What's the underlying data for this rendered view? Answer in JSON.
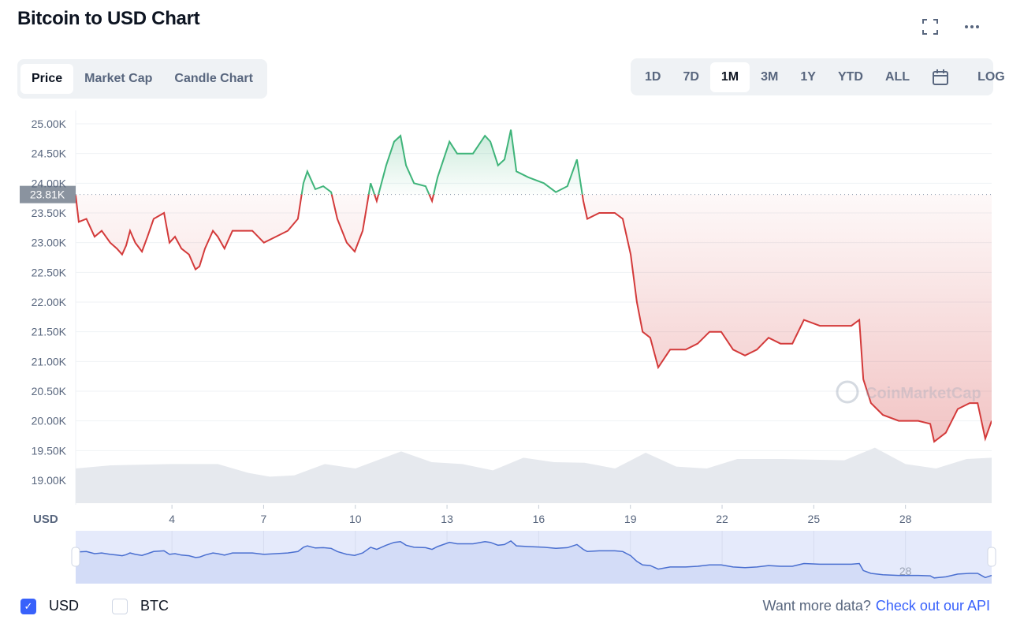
{
  "header": {
    "title": "Bitcoin to USD Chart"
  },
  "tabs": [
    {
      "label": "Price",
      "active": true
    },
    {
      "label": "Market Cap",
      "active": false
    },
    {
      "label": "Candle Chart",
      "active": false
    }
  ],
  "ranges": [
    {
      "label": "1D"
    },
    {
      "label": "7D"
    },
    {
      "label": "1M",
      "active": true
    },
    {
      "label": "3M"
    },
    {
      "label": "1Y"
    },
    {
      "label": "YTD"
    },
    {
      "label": "ALL"
    }
  ],
  "log_label": "LOG",
  "currency_label": "USD",
  "currencies": [
    {
      "label": "USD",
      "checked": true
    },
    {
      "label": "BTC",
      "checked": false
    }
  ],
  "footer": {
    "prompt": "Want more data?",
    "link": "Check out our API"
  },
  "watermark": "CoinMarketCap",
  "colors": {
    "up": "#3fb47a",
    "down": "#d33a3a",
    "accent": "#3861fb",
    "navigator": "#4a6fd0"
  },
  "chart_data": {
    "type": "line",
    "title": "Bitcoin to USD Chart",
    "ylabel": "USD",
    "ylim": [
      18.6,
      25.0
    ],
    "xlim": [
      0.85,
      30.82
    ],
    "baseline": 23.81,
    "baseline_label": "23.81K",
    "yticks": [
      "25.00K",
      "24.50K",
      "24.00K",
      "23.50K",
      "23.00K",
      "22.50K",
      "22.00K",
      "21.50K",
      "21.00K",
      "20.50K",
      "20.00K",
      "19.50K",
      "19.00K"
    ],
    "ytick_values": [
      25,
      24.5,
      24,
      23.5,
      23,
      22.5,
      22,
      21.5,
      21,
      20.5,
      20,
      19.5,
      19
    ],
    "xticks": [
      "4",
      "7",
      "10",
      "13",
      "16",
      "19",
      "22",
      "25",
      "28"
    ],
    "xtick_values": [
      4,
      7,
      10,
      13,
      16,
      19,
      22,
      25,
      28
    ],
    "price_k": [
      [
        0.85,
        23.8
      ],
      [
        0.95,
        23.35
      ],
      [
        1.2,
        23.4
      ],
      [
        1.47,
        23.1
      ],
      [
        1.7,
        23.2
      ],
      [
        1.98,
        23.0
      ],
      [
        2.2,
        22.9
      ],
      [
        2.37,
        22.8
      ],
      [
        2.5,
        22.95
      ],
      [
        2.63,
        23.2
      ],
      [
        2.8,
        23.0
      ],
      [
        3.02,
        22.85
      ],
      [
        3.2,
        23.1
      ],
      [
        3.4,
        23.4
      ],
      [
        3.74,
        23.5
      ],
      [
        3.92,
        23.0
      ],
      [
        4.1,
        23.1
      ],
      [
        4.31,
        22.9
      ],
      [
        4.56,
        22.8
      ],
      [
        4.77,
        22.55
      ],
      [
        4.9,
        22.6
      ],
      [
        5.08,
        22.9
      ],
      [
        5.34,
        23.2
      ],
      [
        5.5,
        23.1
      ],
      [
        5.72,
        22.9
      ],
      [
        5.98,
        23.2
      ],
      [
        6.3,
        23.2
      ],
      [
        6.63,
        23.2
      ],
      [
        7.01,
        23.0
      ],
      [
        7.4,
        23.1
      ],
      [
        7.79,
        23.2
      ],
      [
        8.12,
        23.4
      ],
      [
        8.3,
        24.0
      ],
      [
        8.43,
        24.2
      ],
      [
        8.69,
        23.9
      ],
      [
        8.95,
        23.95
      ],
      [
        9.21,
        23.85
      ],
      [
        9.41,
        23.4
      ],
      [
        9.72,
        23.0
      ],
      [
        9.98,
        22.85
      ],
      [
        10.24,
        23.2
      ],
      [
        10.5,
        24.0
      ],
      [
        10.7,
        23.7
      ],
      [
        11.01,
        24.3
      ],
      [
        11.27,
        24.7
      ],
      [
        11.48,
        24.8
      ],
      [
        11.66,
        24.3
      ],
      [
        11.92,
        24.0
      ],
      [
        12.3,
        23.95
      ],
      [
        12.51,
        23.7
      ],
      [
        12.69,
        24.1
      ],
      [
        13.08,
        24.7
      ],
      [
        13.33,
        24.5
      ],
      [
        13.85,
        24.5
      ],
      [
        14.24,
        24.8
      ],
      [
        14.42,
        24.7
      ],
      [
        14.67,
        24.3
      ],
      [
        14.88,
        24.4
      ],
      [
        15.09,
        24.9
      ],
      [
        15.27,
        24.2
      ],
      [
        15.66,
        24.1
      ],
      [
        16.17,
        24.0
      ],
      [
        16.56,
        23.85
      ],
      [
        16.94,
        23.95
      ],
      [
        17.25,
        24.4
      ],
      [
        17.46,
        23.7
      ],
      [
        17.59,
        23.4
      ],
      [
        17.98,
        23.5
      ],
      [
        18.49,
        23.5
      ],
      [
        18.75,
        23.4
      ],
      [
        19.01,
        22.8
      ],
      [
        19.21,
        22.0
      ],
      [
        19.4,
        21.5
      ],
      [
        19.65,
        21.4
      ],
      [
        19.91,
        20.9
      ],
      [
        20.3,
        21.2
      ],
      [
        20.81,
        21.2
      ],
      [
        21.2,
        21.3
      ],
      [
        21.59,
        21.5
      ],
      [
        21.97,
        21.5
      ],
      [
        22.36,
        21.2
      ],
      [
        22.75,
        21.1
      ],
      [
        23.14,
        21.2
      ],
      [
        23.52,
        21.4
      ],
      [
        23.91,
        21.3
      ],
      [
        24.3,
        21.3
      ],
      [
        24.68,
        21.7
      ],
      [
        25.2,
        21.6
      ],
      [
        25.71,
        21.6
      ],
      [
        26.23,
        21.6
      ],
      [
        26.49,
        21.7
      ],
      [
        26.62,
        20.7
      ],
      [
        26.87,
        20.3
      ],
      [
        27.26,
        20.1
      ],
      [
        27.78,
        20.0
      ],
      [
        28.42,
        20.0
      ],
      [
        28.81,
        19.95
      ],
      [
        28.94,
        19.65
      ],
      [
        29.32,
        19.8
      ],
      [
        29.71,
        20.2
      ],
      [
        30.1,
        20.3
      ],
      [
        30.36,
        20.3
      ],
      [
        30.61,
        19.7
      ],
      [
        30.82,
        20.0
      ]
    ],
    "volume_relative": [
      [
        0.85,
        0.55
      ],
      [
        2,
        0.6
      ],
      [
        4,
        0.62
      ],
      [
        5.5,
        0.62
      ],
      [
        6.5,
        0.48
      ],
      [
        7.2,
        0.42
      ],
      [
        8,
        0.44
      ],
      [
        9,
        0.62
      ],
      [
        10,
        0.55
      ],
      [
        11.5,
        0.82
      ],
      [
        12.5,
        0.65
      ],
      [
        13.5,
        0.62
      ],
      [
        14.5,
        0.52
      ],
      [
        15.5,
        0.72
      ],
      [
        16.5,
        0.65
      ],
      [
        17.5,
        0.64
      ],
      [
        18.5,
        0.55
      ],
      [
        19.5,
        0.8
      ],
      [
        20.5,
        0.58
      ],
      [
        21.5,
        0.55
      ],
      [
        22.5,
        0.7
      ],
      [
        24,
        0.7
      ],
      [
        26,
        0.68
      ],
      [
        27,
        0.88
      ],
      [
        28,
        0.62
      ],
      [
        29,
        0.55
      ],
      [
        30,
        0.7
      ],
      [
        30.82,
        0.72
      ]
    ]
  }
}
